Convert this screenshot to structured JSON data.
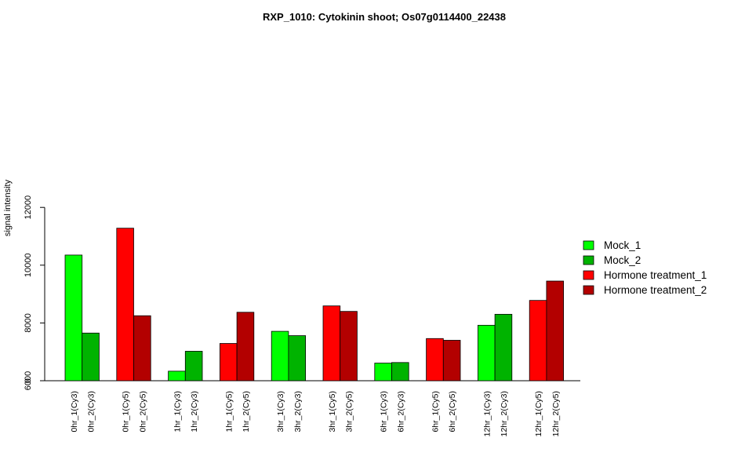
{
  "chart_data": {
    "type": "bar",
    "title": "RXP_1010: Cytokinin shoot; Os07g0114400_22438",
    "xlabel": "",
    "ylabel": "signal intensity",
    "ylim": [
      0,
      12000
    ],
    "axis_break": true,
    "yticks": [
      "0",
      "6000",
      "8000",
      "10000",
      "12000"
    ],
    "legend_position": "right",
    "categories": [
      "0hr_1(Cy3)",
      "0hr_2(Cy3)",
      "0hr_1(Cy5)",
      "0hr_2(Cy5)",
      "1hr_1(Cy3)",
      "1hr_2(Cy3)",
      "1hr_1(Cy5)",
      "1hr_2(Cy5)",
      "3hr_1(Cy3)",
      "3hr_2(Cy3)",
      "3hr_1(Cy5)",
      "3hr_2(Cy5)",
      "6hr_1(Cy3)",
      "6hr_2(Cy3)",
      "6hr_1(Cy5)",
      "6hr_2(Cy5)",
      "12hr_1(Cy3)",
      "12hr_2(Cy3)",
      "12hr_1(Cy5)",
      "12hr_2(Cy5)"
    ],
    "values": [
      10350,
      7650,
      11280,
      8250,
      6330,
      7020,
      7290,
      8370,
      7710,
      7560,
      8590,
      8400,
      6610,
      6630,
      7460,
      7400,
      7920,
      8300,
      8780,
      9450
    ],
    "bar_series": [
      "Mock_1",
      "Mock_2",
      "Hormone treatment_1",
      "Hormone treatment_2",
      "Mock_1",
      "Mock_2",
      "Hormone treatment_1",
      "Hormone treatment_2",
      "Mock_1",
      "Mock_2",
      "Hormone treatment_1",
      "Hormone treatment_2",
      "Mock_1",
      "Mock_2",
      "Hormone treatment_1",
      "Hormone treatment_2",
      "Mock_1",
      "Mock_2",
      "Hormone treatment_1",
      "Hormone treatment_2"
    ],
    "series": [
      {
        "name": "Mock_1",
        "color": "#00ff00"
      },
      {
        "name": "Mock_2",
        "color": "#00b300"
      },
      {
        "name": "Hormone treatment_1",
        "color": "#ff0000"
      },
      {
        "name": "Hormone treatment_2",
        "color": "#b30000"
      }
    ]
  }
}
